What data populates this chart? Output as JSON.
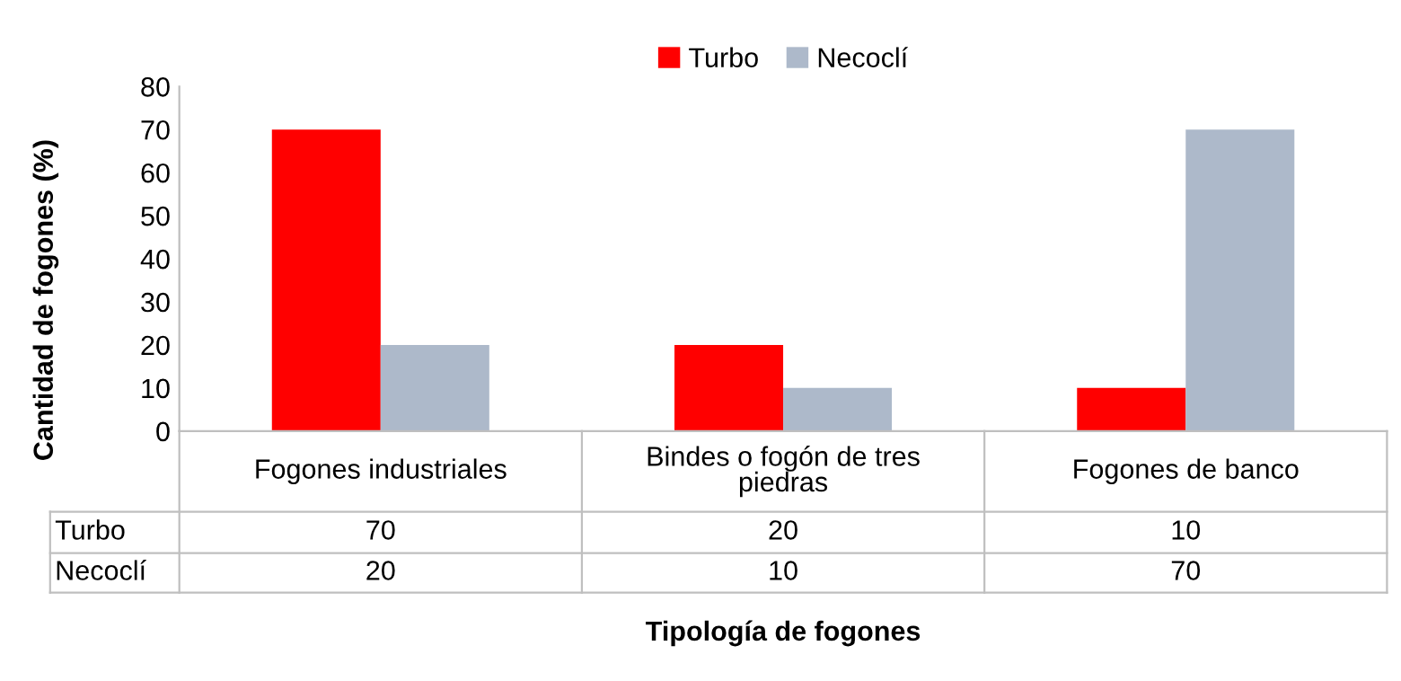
{
  "chart_data": {
    "type": "bar",
    "xlabel": "Tipología de fogones",
    "ylabel": "Cantidad de fogones (%)",
    "categories": [
      "Fogones industriales",
      "Bindes o fogón de tres piedras",
      "Fogones de banco"
    ],
    "series": [
      {
        "name": "Turbo",
        "color": "#ff0000",
        "values": [
          70,
          20,
          10
        ]
      },
      {
        "name": "Necoclí",
        "color": "#adb9ca",
        "values": [
          20,
          10,
          70
        ]
      }
    ],
    "ylim": [
      0,
      80
    ],
    "yticks": [
      0,
      10,
      20,
      30,
      40,
      50,
      60,
      70,
      80
    ],
    "grid": false,
    "legend": "top",
    "data_labels": true
  }
}
